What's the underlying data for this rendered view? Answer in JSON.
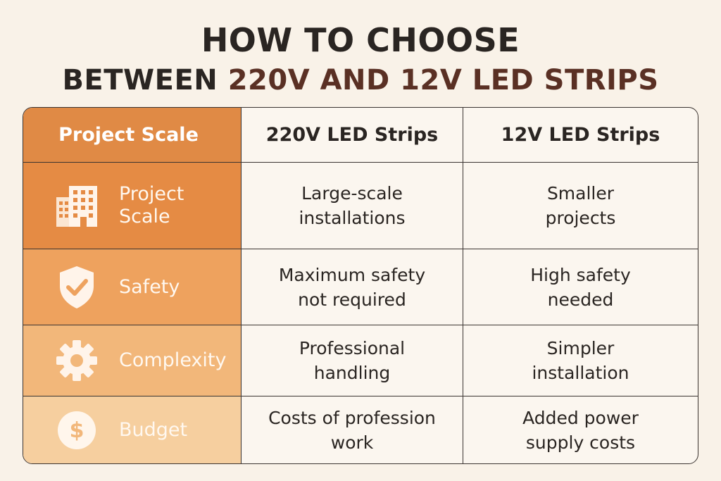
{
  "title": {
    "line1": "HOW TO CHOOSE",
    "line2_prefix": "BETWEEN",
    "line2_highlight": "220V AND 12V LED STRIPS"
  },
  "colors": {
    "background": "#f9f2e8",
    "title_accent": "#5a3024",
    "header_orange": "#e08a45",
    "row_colors": [
      "#e58b44",
      "#eea25e",
      "#f2b77a",
      "#f6cf9f"
    ]
  },
  "table": {
    "headers": [
      "Project Scale",
      "220V LED Strips",
      "12V LED Strips"
    ],
    "rows": [
      {
        "icon": "building-icon",
        "label": "Project\nScale",
        "v220": "Large-scale\ninstallations",
        "v12": "Smaller\nprojects"
      },
      {
        "icon": "shield-check-icon",
        "label": "Safety",
        "v220": "Maximum safety\nnot required",
        "v12": "High safety\nneeded"
      },
      {
        "icon": "gear-icon",
        "label": "Complexity",
        "v220": "Professional\nhandling",
        "v12": "Simpler\ninstallation"
      },
      {
        "icon": "dollar-coin-icon",
        "label": "Budget",
        "v220": "Costs of profession\nwork",
        "v12": "Added power\nsupply costs"
      }
    ]
  }
}
